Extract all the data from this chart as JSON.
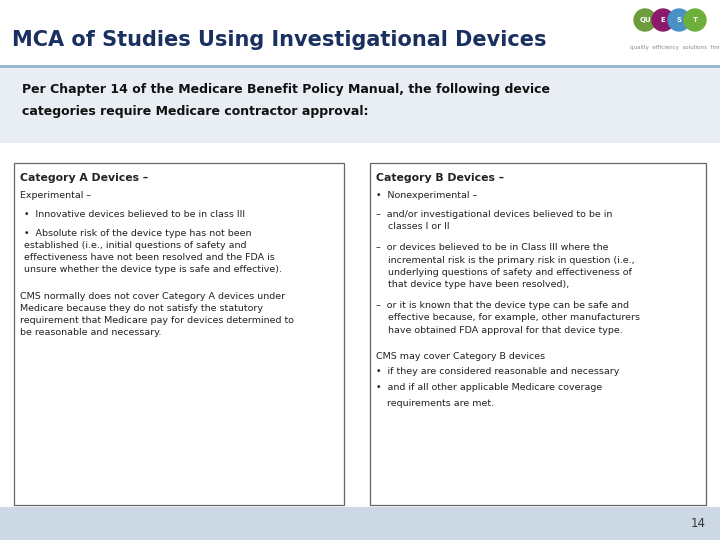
{
  "title": "MCA of Studies Using Investigational Devices",
  "title_color": "#1a3060",
  "title_bg": "#ffffff",
  "header_line_color": "#b8cfe0",
  "intro_text_line1": "Per Chapter 14 of the Medicare Benefit Policy Manual, the following device",
  "intro_text_line2": "categories require Medicare contractor approval:",
  "intro_bg": "#f0f4f8",
  "footer_bg": "#d0dce8",
  "cat_a_header": "Category A Devices –",
  "cat_b_header": "Category B Devices –",
  "box_border_color": "#444444",
  "box_bg_color": "#ffffff",
  "page_bg": "#ffffff",
  "page_num": "14",
  "quest_colors": [
    "#6b9e3a",
    "#8b1a6b",
    "#4a90c4",
    "#6daf3a"
  ],
  "quest_letters": [
    "QU",
    "E",
    "S",
    "T"
  ],
  "text_color": "#222222",
  "header_text_color": "#1a3060"
}
